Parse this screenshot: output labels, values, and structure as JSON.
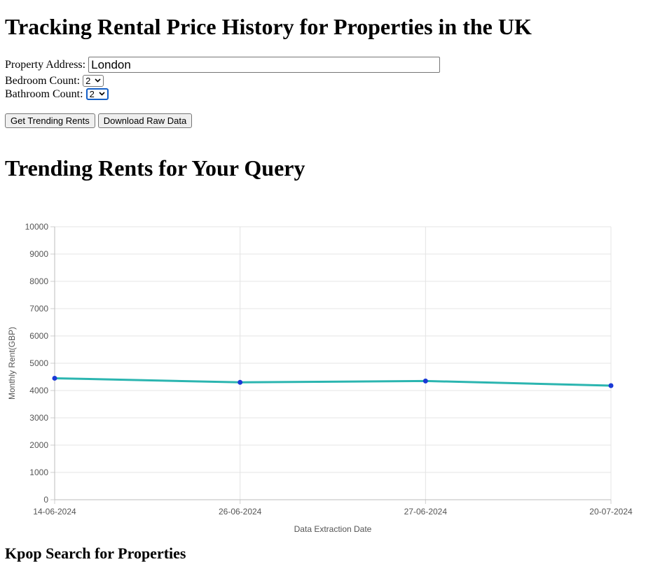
{
  "page": {
    "title": "Tracking Rental Price History for Properties in the UK",
    "subtitle": "Trending Rents for Your Query",
    "bottom_heading": "Kpop Search for Properties"
  },
  "form": {
    "address_label": "Property Address:",
    "address_value": "London",
    "bedroom_label": "Bedroom Count:",
    "bedroom_value": "2",
    "bathroom_label": "Bathroom Count:",
    "bathroom_value": "2"
  },
  "buttons": {
    "trending": "Get Trending Rents",
    "download": "Download Raw Data"
  },
  "chart_data": {
    "type": "line",
    "categories": [
      "14-06-2024",
      "26-06-2024",
      "27-06-2024",
      "20-07-2024"
    ],
    "series": [
      {
        "name": "Monthly Rent",
        "values": [
          4450,
          4300,
          4350,
          4180
        ]
      }
    ],
    "xlabel": "Data Extraction Date",
    "ylabel": "Monthly Rent(GBP)",
    "ylim": [
      0,
      10000
    ],
    "yticks": [
      0,
      1000,
      2000,
      3000,
      4000,
      5000,
      6000,
      7000,
      8000,
      9000,
      10000
    ],
    "line_color": "#2bb5b0",
    "point_color": "#1a39d6",
    "grid": true
  }
}
